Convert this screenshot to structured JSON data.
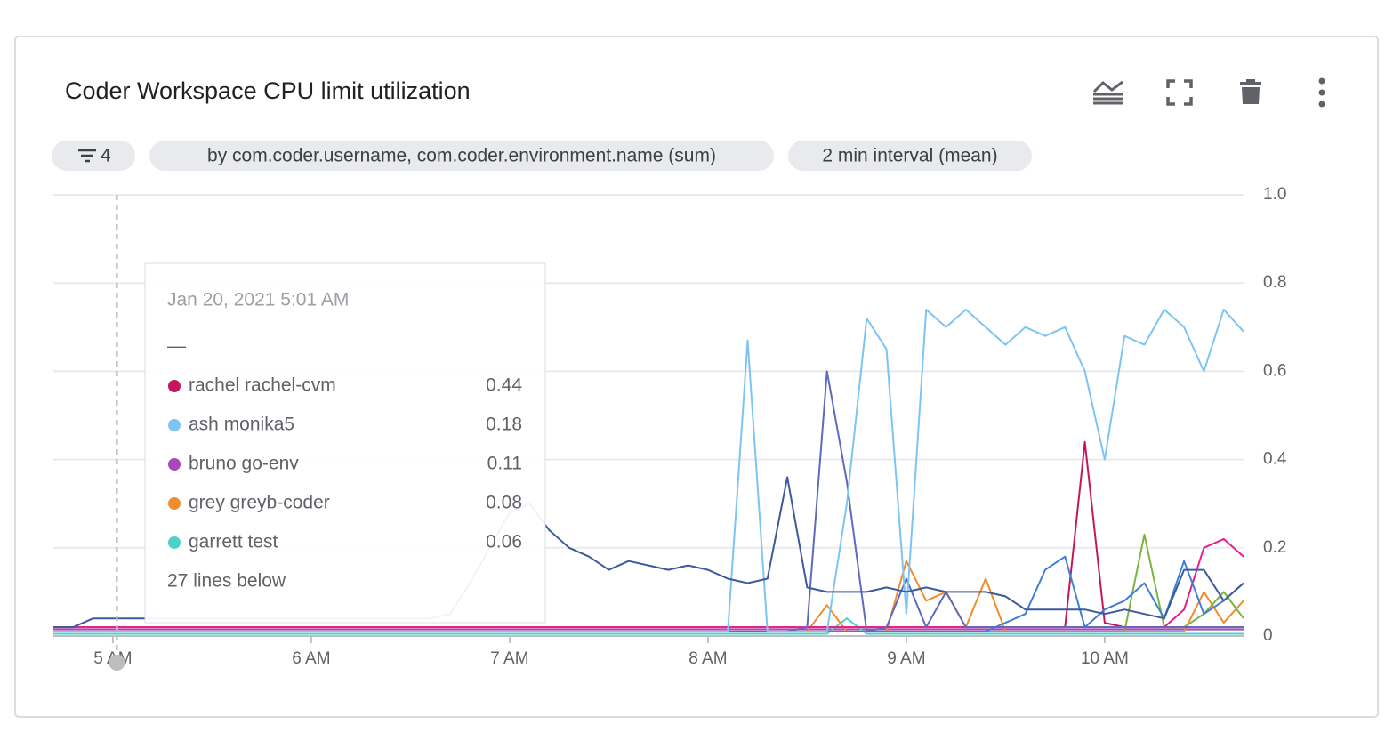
{
  "chips": {
    "filter_count": 4,
    "group_by": "by com.coder.username, com.coder.environment.name (sum)",
    "interval": "2 min interval (mean)"
  },
  "chart_data": {
    "type": "line",
    "title": "Coder Workspace CPU limit utilization",
    "x": [
      4.7,
      4.8,
      4.9,
      5,
      5.1,
      5.2,
      5.3,
      5.4,
      5.5,
      5.6,
      5.7,
      5.8,
      5.9,
      6,
      6.1,
      6.2,
      6.3,
      6.4,
      6.5,
      6.6,
      6.7,
      6.8,
      6.9,
      7,
      7.1,
      7.2,
      7.3,
      7.4,
      7.5,
      7.6,
      7.7,
      7.8,
      7.9,
      8,
      8.1,
      8.2,
      8.3,
      8.4,
      8.5,
      8.6,
      8.7,
      8.8,
      8.9,
      9,
      9.1,
      9.2,
      9.3,
      9.4,
      9.5,
      9.6,
      9.7,
      9.8,
      9.9,
      10,
      10.1,
      10.2,
      10.3,
      10.4,
      10.5,
      10.6,
      10.7
    ],
    "xlim": [
      4.7,
      10.7
    ],
    "xticks": [
      {
        "value": 5,
        "label": "5 AM"
      },
      {
        "value": 6,
        "label": "6 AM"
      },
      {
        "value": 7,
        "label": "7 AM"
      },
      {
        "value": 8,
        "label": "8 AM"
      },
      {
        "value": 9,
        "label": "9 AM"
      },
      {
        "value": 10,
        "label": "10 AM"
      }
    ],
    "ylim": [
      0,
      1
    ],
    "yticks": [
      0,
      0.2,
      0.4,
      0.6,
      0.8,
      {
        "value": 1,
        "label": "1.0"
      }
    ],
    "grid": true,
    "crosshair_x": 5.02,
    "series": [
      {
        "color": "#ab47bc",
        "values": [
          0.015,
          0.015,
          0.015,
          0.015,
          0.015,
          0.015,
          0.015,
          0.015,
          0.015,
          0.015,
          0.015,
          0.015,
          0.015,
          0.015,
          0.015,
          0.015,
          0.015,
          0.015,
          0.015,
          0.015,
          0.015,
          0.015,
          0.015,
          0.015,
          0.015,
          0.015,
          0.015,
          0.015,
          0.015,
          0.015,
          0.015,
          0.015,
          0.015,
          0.015,
          0.015,
          0.015,
          0.015,
          0.015,
          0.015,
          0.015,
          0.015,
          0.015,
          0.015,
          0.015,
          0.015,
          0.015,
          0.015,
          0.015,
          0.015,
          0.015,
          0.015,
          0.015,
          0.015,
          0.015,
          0.015,
          0.015,
          0.015,
          0.015,
          0.015,
          0.015,
          0.015
        ]
      },
      {
        "color": "#4dd0c8",
        "values": [
          0.005,
          0.005,
          0.005,
          0.005,
          0.005,
          0.005,
          0.005,
          0.005,
          0.005,
          0.005,
          0.005,
          0.005,
          0.005,
          0.005,
          0.005,
          0.005,
          0.005,
          0.005,
          0.005,
          0.005,
          0.005,
          0.005,
          0.005,
          0.005,
          0.005,
          0.005,
          0.005,
          0.005,
          0.005,
          0.005,
          0.005,
          0.005,
          0.005,
          0.005,
          0.005,
          0.005,
          0.005,
          0.005,
          0.005,
          0.005,
          0.04,
          0.005,
          0.005,
          0.005,
          0.005,
          0.005,
          0.005,
          0.005,
          0.005,
          0.005,
          0.005,
          0.005,
          0.005,
          0.005,
          0.005,
          0.005,
          0.005,
          0.005,
          0.005,
          0.005,
          0.005
        ]
      },
      {
        "color": "#ef8c2e",
        "values": [
          0.01,
          0.01,
          0.01,
          0.01,
          0.01,
          0.01,
          0.01,
          0.01,
          0.01,
          0.01,
          0.01,
          0.01,
          0.01,
          0.01,
          0.01,
          0.01,
          0.01,
          0.01,
          0.01,
          0.01,
          0.01,
          0.01,
          0.01,
          0.01,
          0.01,
          0.01,
          0.01,
          0.01,
          0.01,
          0.01,
          0.01,
          0.01,
          0.01,
          0.01,
          0.01,
          0.01,
          0.01,
          0.01,
          0.01,
          0.07,
          0.01,
          0.01,
          0.01,
          0.17,
          0.08,
          0.1,
          0.02,
          0.13,
          0.01,
          0.01,
          0.01,
          0.01,
          0.01,
          0.01,
          0.01,
          0.01,
          0.01,
          0.01,
          0.1,
          0.03,
          0.08
        ]
      },
      {
        "color": "#7cb342",
        "values": [
          0.01,
          0.01,
          0.01,
          0.01,
          0.01,
          0.01,
          0.01,
          0.01,
          0.01,
          0.01,
          0.01,
          0.01,
          0.01,
          0.01,
          0.01,
          0.01,
          0.01,
          0.01,
          0.01,
          0.01,
          0.01,
          0.01,
          0.01,
          0.01,
          0.01,
          0.01,
          0.01,
          0.01,
          0.01,
          0.01,
          0.01,
          0.01,
          0.01,
          0.01,
          0.01,
          0.01,
          0.01,
          0.01,
          0.01,
          0.01,
          0.01,
          0.01,
          0.01,
          0.01,
          0.01,
          0.01,
          0.01,
          0.01,
          0.01,
          0.01,
          0.01,
          0.01,
          0.01,
          0.01,
          0.01,
          0.23,
          0.02,
          0.02,
          0.05,
          0.1,
          0.04
        ]
      },
      {
        "color": "#c2185b",
        "values": [
          0.02,
          0.02,
          0.02,
          0.02,
          0.02,
          0.02,
          0.02,
          0.02,
          0.02,
          0.02,
          0.02,
          0.02,
          0.02,
          0.02,
          0.02,
          0.02,
          0.02,
          0.02,
          0.02,
          0.02,
          0.02,
          0.02,
          0.02,
          0.02,
          0.02,
          0.02,
          0.02,
          0.02,
          0.02,
          0.02,
          0.02,
          0.02,
          0.02,
          0.02,
          0.02,
          0.02,
          0.02,
          0.02,
          0.02,
          0.02,
          0.02,
          0.02,
          0.02,
          0.02,
          0.02,
          0.02,
          0.02,
          0.02,
          0.02,
          0.02,
          0.02,
          0.02,
          0.44,
          0.03,
          0.02,
          0.02,
          0.02,
          0.02,
          0.02,
          0.02,
          0.02
        ]
      },
      {
        "color": "#e91e8c",
        "values": [
          0.02,
          0.02,
          0.02,
          0.02,
          0.02,
          0.02,
          0.02,
          0.02,
          0.02,
          0.02,
          0.02,
          0.02,
          0.02,
          0.02,
          0.02,
          0.02,
          0.02,
          0.02,
          0.02,
          0.02,
          0.02,
          0.02,
          0.02,
          0.02,
          0.02,
          0.02,
          0.02,
          0.02,
          0.02,
          0.02,
          0.02,
          0.02,
          0.02,
          0.02,
          0.02,
          0.02,
          0.02,
          0.02,
          0.02,
          0.02,
          0.02,
          0.02,
          0.02,
          0.02,
          0.02,
          0.02,
          0.02,
          0.02,
          0.02,
          0.02,
          0.02,
          0.02,
          0.02,
          0.02,
          0.02,
          0.02,
          0.02,
          0.06,
          0.2,
          0.22,
          0.18
        ]
      },
      {
        "color": "#3f7fd6",
        "values": [
          0.01,
          0.01,
          0.01,
          0.01,
          0.01,
          0.01,
          0.01,
          0.01,
          0.01,
          0.01,
          0.01,
          0.01,
          0.01,
          0.01,
          0.01,
          0.01,
          0.01,
          0.01,
          0.01,
          0.01,
          0.01,
          0.01,
          0.01,
          0.01,
          0.01,
          0.01,
          0.01,
          0.01,
          0.01,
          0.01,
          0.01,
          0.01,
          0.01,
          0.01,
          0.01,
          0.01,
          0.01,
          0.01,
          0.01,
          0.01,
          0.01,
          0.01,
          0.01,
          0.01,
          0.01,
          0.01,
          0.01,
          0.01,
          0.03,
          0.05,
          0.15,
          0.18,
          0.02,
          0.06,
          0.08,
          0.12,
          0.04,
          0.17,
          0.05,
          0.08,
          0.12
        ]
      },
      {
        "color": "#5c6bc0",
        "values": [
          0.01,
          0.01,
          0.01,
          0.01,
          0.01,
          0.01,
          0.01,
          0.01,
          0.01,
          0.01,
          0.01,
          0.01,
          0.01,
          0.01,
          0.01,
          0.01,
          0.01,
          0.01,
          0.01,
          0.01,
          0.01,
          0.01,
          0.01,
          0.01,
          0.01,
          0.01,
          0.01,
          0.01,
          0.01,
          0.01,
          0.01,
          0.01,
          0.01,
          0.01,
          0.01,
          0.01,
          0.01,
          0.01,
          0.02,
          0.6,
          0.35,
          0.01,
          0.02,
          0.13,
          0.02,
          0.1,
          0.02,
          0.02,
          0.02,
          0.02,
          0.02,
          0.02,
          0.02,
          0.02,
          0.02,
          0.02,
          0.02,
          0.02,
          0.02,
          0.02,
          0.02
        ]
      },
      {
        "color": "#7dc4f4",
        "values": [
          0.01,
          0.01,
          0.01,
          0.01,
          0.01,
          0.01,
          0.01,
          0.01,
          0.01,
          0.01,
          0.01,
          0.01,
          0.01,
          0.01,
          0.01,
          0.01,
          0.01,
          0.01,
          0.01,
          0.01,
          0.01,
          0.01,
          0.01,
          0.01,
          0.01,
          0.01,
          0.01,
          0.01,
          0.01,
          0.01,
          0.01,
          0.01,
          0.01,
          0.01,
          0.01,
          0.67,
          0.01,
          0.01,
          0.01,
          0.01,
          0.3,
          0.72,
          0.65,
          0.05,
          0.74,
          0.7,
          0.74,
          0.7,
          0.66,
          0.7,
          0.68,
          0.7,
          0.6,
          0.4,
          0.68,
          0.66,
          0.74,
          0.7,
          0.6,
          0.74,
          0.69
        ]
      },
      {
        "color": "#3d5a9e",
        "values": [
          0.02,
          0.02,
          0.04,
          0.04,
          0.04,
          0.04,
          0.04,
          0.04,
          0.04,
          0.04,
          0.04,
          0.04,
          0.04,
          0.04,
          0.04,
          0.04,
          0.04,
          0.04,
          0.04,
          0.04,
          0.05,
          0.12,
          0.2,
          0.28,
          0.3,
          0.24,
          0.2,
          0.18,
          0.15,
          0.17,
          0.16,
          0.15,
          0.16,
          0.15,
          0.13,
          0.12,
          0.13,
          0.36,
          0.11,
          0.1,
          0.1,
          0.1,
          0.11,
          0.1,
          0.11,
          0.1,
          0.1,
          0.1,
          0.09,
          0.06,
          0.06,
          0.06,
          0.06,
          0.05,
          0.06,
          0.05,
          0.04,
          0.15,
          0.15,
          0.08,
          0.12
        ]
      }
    ],
    "tooltip": {
      "time": "Jan 20, 2021 5:01 AM",
      "dash": "—",
      "items": [
        {
          "name": "rachel rachel-cvm",
          "color": "#c2185b",
          "value": 0.44
        },
        {
          "name": "ash monika5",
          "color": "#7dc4f4",
          "value": 0.18
        },
        {
          "name": "bruno go-env",
          "color": "#ab47bc",
          "value": 0.11
        },
        {
          "name": "grey greyb-coder",
          "color": "#ef8c2e",
          "value": 0.08
        },
        {
          "name": "garrett test",
          "color": "#4dd0c8",
          "value": 0.06
        }
      ],
      "more": "27 lines below"
    }
  }
}
